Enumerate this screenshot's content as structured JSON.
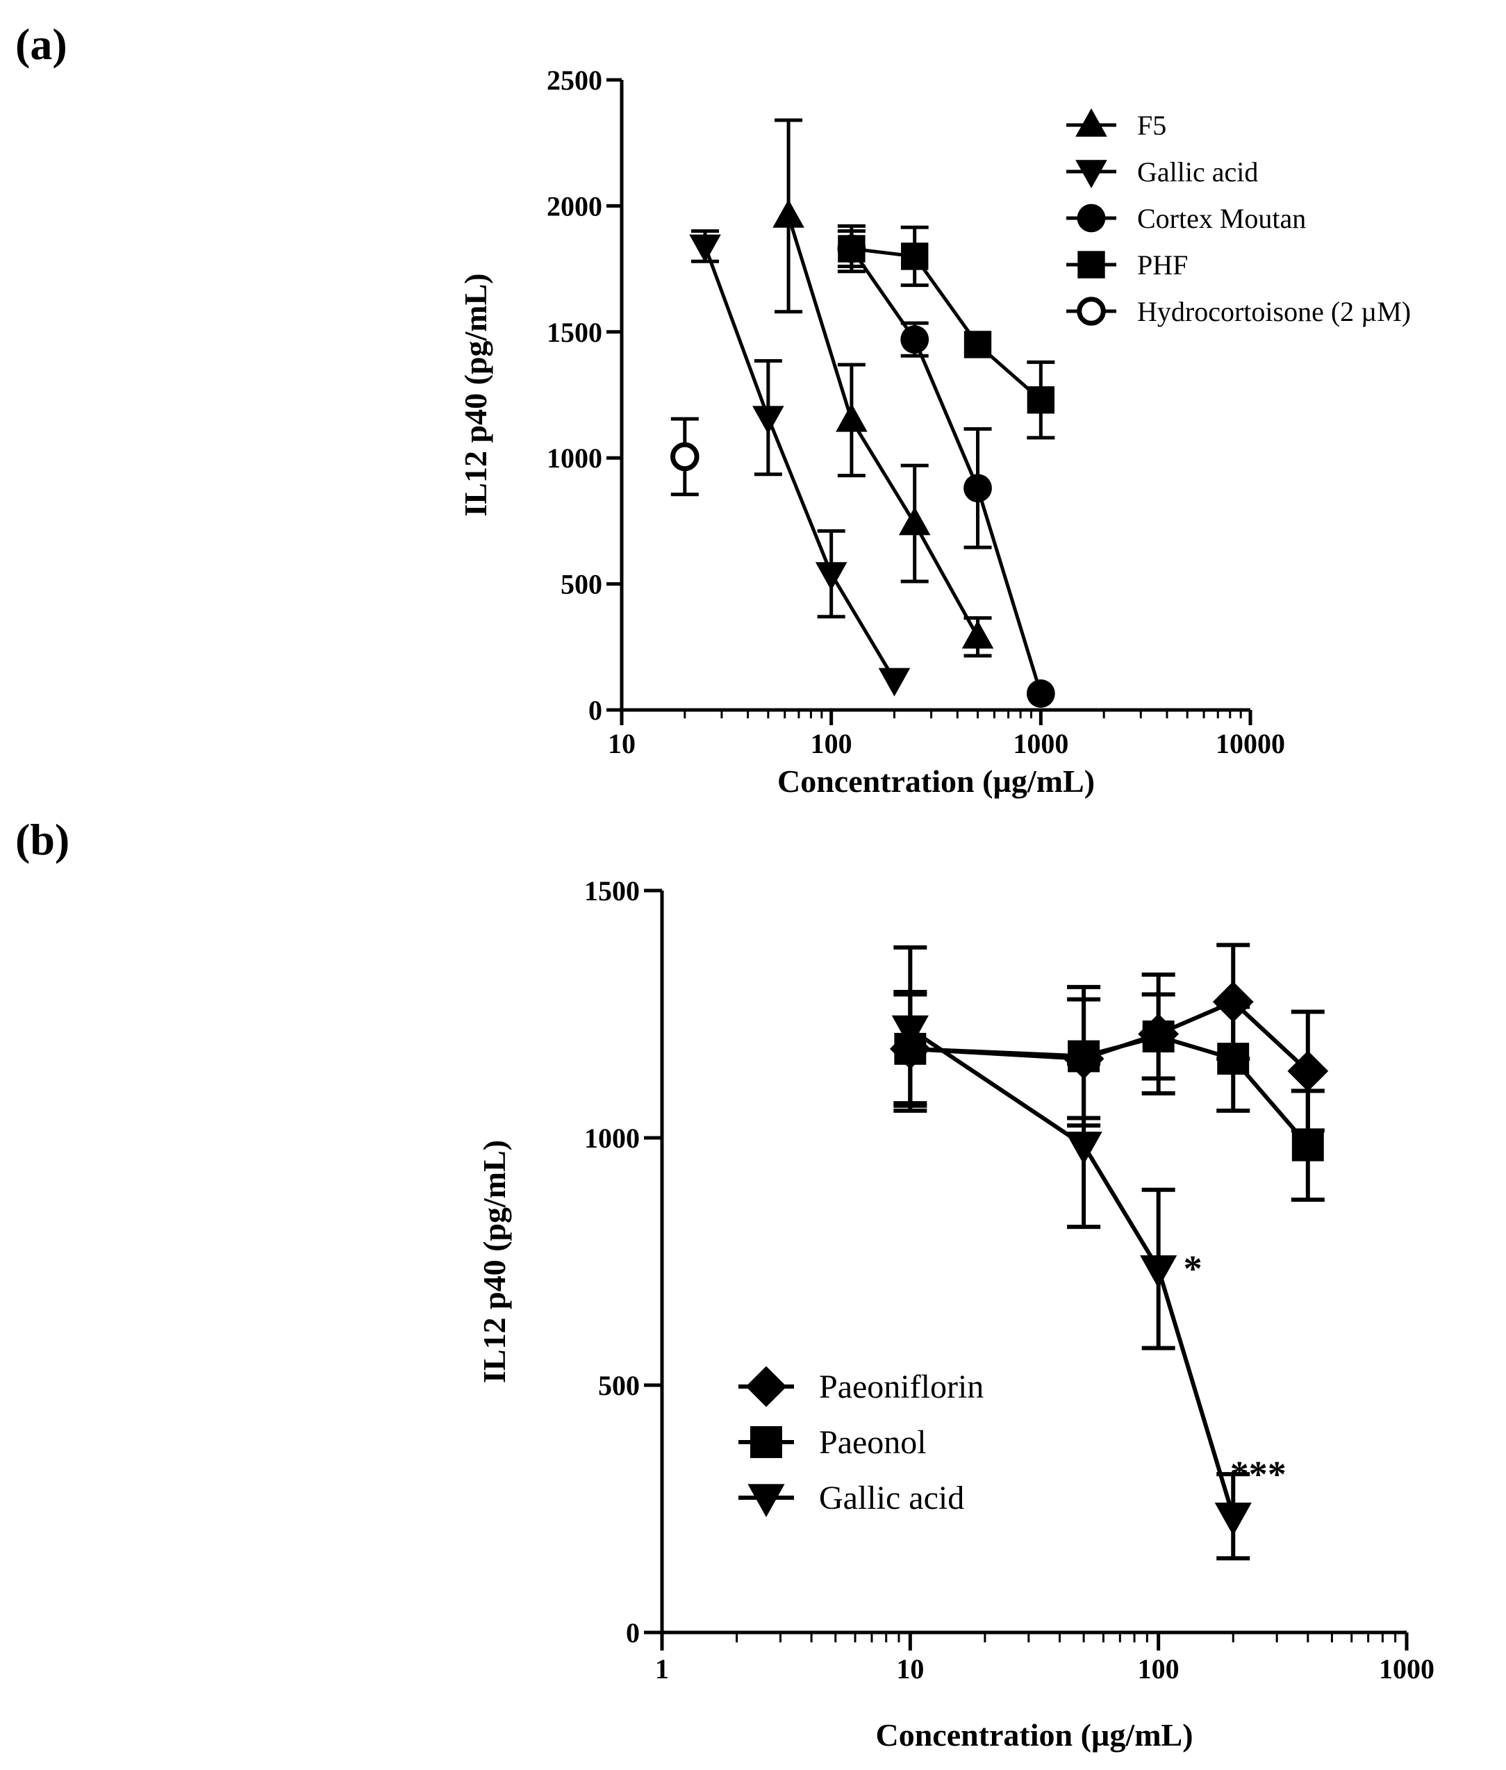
{
  "figure": {
    "panels": [
      "(a)",
      "(b)"
    ]
  },
  "chart_data": [
    {
      "type": "line",
      "panel": "(a)",
      "xscale": "log",
      "xlabel": "Concentration (µg/mL)",
      "ylabel": "IL12 p40 (pg/mL)",
      "xlim": [
        10,
        10000
      ],
      "ylim": [
        0,
        2500
      ],
      "xticks": [
        10,
        100,
        1000,
        10000
      ],
      "xtick_labels": [
        "10",
        "100",
        "1000",
        "10000"
      ],
      "yticks": [
        0,
        500,
        1000,
        1500,
        2000,
        2500
      ],
      "ytick_labels": [
        "0",
        "500",
        "1000",
        "1500",
        "2000",
        "2500"
      ],
      "legend_position": "top-right",
      "series": [
        {
          "name": "F5",
          "marker": "triangle-up",
          "connected": true,
          "points": [
            {
              "x": 62.5,
              "y": 1960,
              "err": 380
            },
            {
              "x": 125,
              "y": 1150,
              "err": 220
            },
            {
              "x": 250,
              "y": 740,
              "err": 230
            },
            {
              "x": 500,
              "y": 290,
              "err": 75
            }
          ]
        },
        {
          "name": "Gallic acid",
          "marker": "triangle-down",
          "connected": true,
          "points": [
            {
              "x": 25,
              "y": 1840,
              "err": 60
            },
            {
              "x": 50,
              "y": 1160,
              "err": 225
            },
            {
              "x": 100,
              "y": 540,
              "err": 170
            },
            {
              "x": 200,
              "y": 120,
              "err": 0
            }
          ]
        },
        {
          "name": "Cortex Moutan",
          "marker": "circle",
          "connected": true,
          "points": [
            {
              "x": 125,
              "y": 1830,
              "err": 70
            },
            {
              "x": 250,
              "y": 1470,
              "err": 65
            },
            {
              "x": 500,
              "y": 880,
              "err": 235
            },
            {
              "x": 1000,
              "y": 65,
              "err": 0
            }
          ]
        },
        {
          "name": "PHF",
          "marker": "square",
          "connected": true,
          "points": [
            {
              "x": 125,
              "y": 1830,
              "err": 90
            },
            {
              "x": 250,
              "y": 1800,
              "err": 115
            },
            {
              "x": 500,
              "y": 1450,
              "err": 0
            },
            {
              "x": 1000,
              "y": 1230,
              "err": 150
            }
          ]
        },
        {
          "name": "Hydrocortoisone (2 µM)",
          "marker": "circle-open",
          "connected": false,
          "points": [
            {
              "x": 20,
              "y": 1005,
              "err": 150
            }
          ]
        }
      ]
    },
    {
      "type": "line",
      "panel": "(b)",
      "xscale": "log",
      "xlabel": "Concentration (µg/mL)",
      "ylabel": "IL12 p40 (pg/mL)",
      "xlim": [
        1,
        1000
      ],
      "ylim": [
        0,
        1500
      ],
      "xticks": [
        1,
        10,
        100,
        1000
      ],
      "xtick_labels": [
        "1",
        "10",
        "100",
        "1000"
      ],
      "yticks": [
        0,
        500,
        1000,
        1500
      ],
      "ytick_labels": [
        "0",
        "500",
        "1000",
        "1500"
      ],
      "legend_position": "bottom-left",
      "series": [
        {
          "name": "Paeoniflorin",
          "marker": "diamond",
          "connected": true,
          "points": [
            {
              "x": 10,
              "y": 1180,
              "err": 110
            },
            {
              "x": 50,
              "y": 1160,
              "err": 120
            },
            {
              "x": 100,
              "y": 1210,
              "err": 120
            },
            {
              "x": 200,
              "y": 1275,
              "err": 115
            },
            {
              "x": 400,
              "y": 1135,
              "err": 120
            }
          ]
        },
        {
          "name": "Paeonol",
          "marker": "square",
          "connected": true,
          "points": [
            {
              "x": 10,
              "y": 1180,
              "err": 115
            },
            {
              "x": 50,
              "y": 1165,
              "err": 140
            },
            {
              "x": 100,
              "y": 1205,
              "err": 85
            },
            {
              "x": 200,
              "y": 1160,
              "err": 105
            },
            {
              "x": 400,
              "y": 985,
              "err": 110
            }
          ]
        },
        {
          "name": "Gallic acid",
          "marker": "triangle-down",
          "connected": true,
          "points": [
            {
              "x": 10,
              "y": 1220,
              "err": 165
            },
            {
              "x": 50,
              "y": 985,
              "err": 165
            },
            {
              "x": 100,
              "y": 735,
              "err": 160
            },
            {
              "x": 200,
              "y": 235,
              "err": 85
            }
          ]
        }
      ],
      "annotations": [
        {
          "text": "*",
          "x": 100,
          "y": 735
        },
        {
          "text": "***",
          "x": 200,
          "y": 235
        }
      ]
    }
  ]
}
